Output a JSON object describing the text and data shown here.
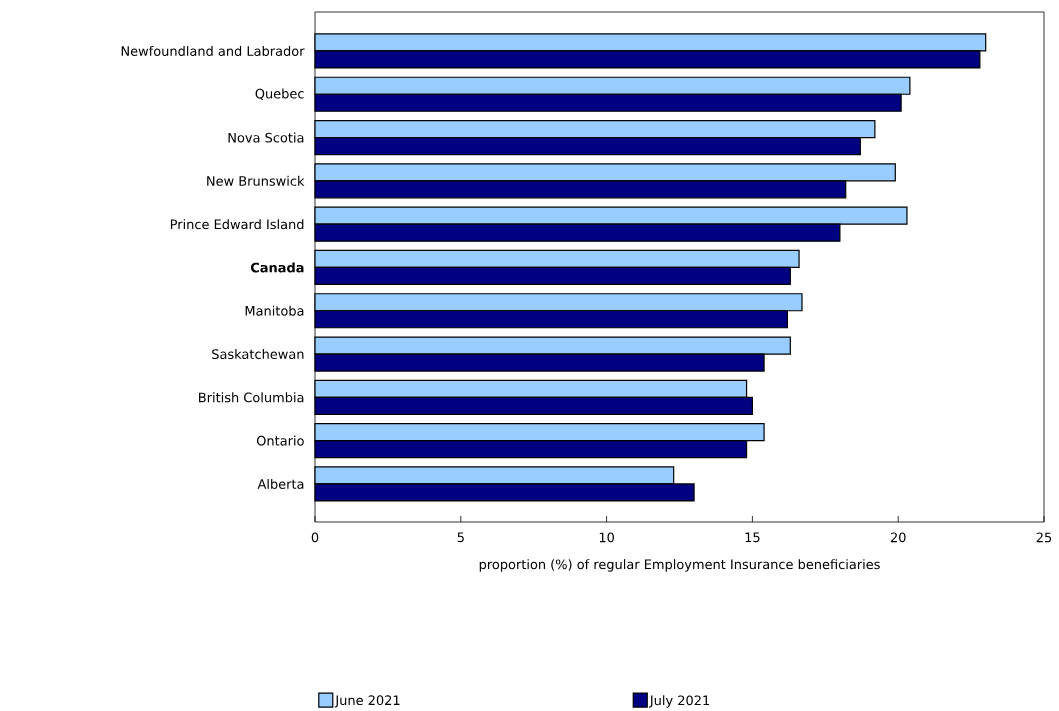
{
  "chart_data": {
    "type": "bar",
    "orientation": "horizontal",
    "xlabel": "proportion (%) of regular Employment Insurance beneficiaries",
    "categories": [
      "Newfoundland and Labrador",
      "Quebec",
      "Nova Scotia",
      "New Brunswick",
      "Prince Edward Island",
      "**Canada**",
      "Manitoba",
      "Saskatchewan",
      "British Columbia",
      "Ontario",
      "Alberta"
    ],
    "series": [
      {
        "name": "June 2021",
        "color": "#99ccff",
        "values": [
          23.0,
          20.4,
          19.2,
          19.9,
          20.3,
          16.6,
          16.7,
          16.3,
          14.8,
          15.4,
          12.3
        ]
      },
      {
        "name": "July 2021",
        "color": "#000080",
        "values": [
          22.8,
          20.1,
          18.7,
          18.2,
          18.0,
          16.3,
          16.2,
          15.4,
          15.0,
          14.8,
          13.0
        ]
      }
    ],
    "xlim": [
      0,
      25
    ],
    "xticks": [
      0,
      5,
      10,
      15,
      20,
      25
    ],
    "grid": false,
    "legend": "bottom"
  }
}
